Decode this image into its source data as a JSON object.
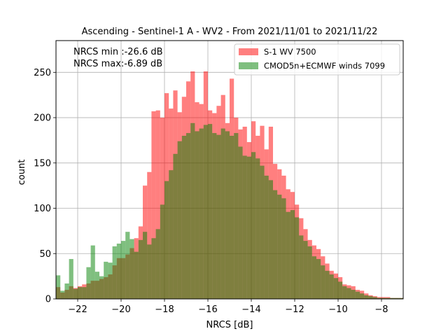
{
  "chart_data": {
    "type": "bar",
    "title": "Ascending - Sentinel-1 A - WV2 - From 2021/11/01 to 2021/11/22",
    "xlabel": "NRCS [dB]",
    "ylabel": "count",
    "xlim": [
      -23.0,
      -7.0
    ],
    "ylim": [
      0,
      285
    ],
    "xticks": [
      -22,
      -20,
      -18,
      -16,
      -14,
      -12,
      -10,
      -8
    ],
    "xtick_labels": [
      "−22",
      "−20",
      "−18",
      "−16",
      "−14",
      "−12",
      "−10",
      "−8"
    ],
    "yticks": [
      0,
      50,
      100,
      150,
      200,
      250
    ],
    "grid": true,
    "legend_position": "top-right",
    "annotations": [
      "NRCS min :-26.6 dB",
      "NRCS max:-6.89 dB"
    ],
    "bin_width": 0.2,
    "bin_start": -23.0,
    "series": [
      {
        "name": "S-1 WV 7500",
        "color": "#ff0000",
        "opacity": 0.5,
        "values": [
          13,
          7,
          10,
          14,
          12,
          14,
          16,
          17,
          20,
          20,
          22,
          24,
          27,
          37,
          45,
          45,
          49,
          56,
          67,
          80,
          125,
          140,
          207,
          208,
          200,
          227,
          210,
          230,
          206,
          223,
          240,
          251,
          217,
          215,
          251,
          208,
          205,
          213,
          225,
          194,
          243,
          200,
          187,
          190,
          173,
          196,
          180,
          191,
          165,
          190,
          149,
          143,
          136,
          121,
          118,
          104,
          89,
          77,
          65,
          59,
          55,
          47,
          39,
          31,
          28,
          24,
          16,
          15,
          14,
          10,
          9,
          6,
          4,
          3,
          2,
          2,
          2,
          1,
          1,
          1
        ]
      },
      {
        "name": "CMOD5n+ECMWF winds 7099",
        "color": "#008000",
        "opacity": 0.5,
        "values": [
          26,
          9,
          17,
          44,
          11,
          13,
          13,
          35,
          59,
          30,
          25,
          41,
          40,
          58,
          61,
          64,
          74,
          66,
          52,
          65,
          74,
          60,
          67,
          77,
          104,
          130,
          142,
          160,
          174,
          180,
          183,
          194,
          185,
          188,
          192,
          193,
          183,
          181,
          188,
          185,
          180,
          183,
          168,
          158,
          157,
          162,
          155,
          147,
          136,
          131,
          120,
          115,
          111,
          96,
          98,
          90,
          70,
          64,
          58,
          47,
          44,
          37,
          31,
          27,
          23,
          19,
          14,
          12,
          10,
          8,
          6,
          4,
          3,
          2,
          1,
          1,
          1,
          1,
          1,
          1
        ]
      }
    ]
  }
}
